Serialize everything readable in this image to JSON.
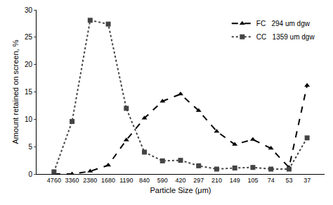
{
  "chart_data": {
    "type": "line",
    "x_label": "Particle Size (μm)",
    "y_label": "Amount retained on screen, %",
    "categories": [
      "4760",
      "3360",
      "2380",
      "1680",
      "1190",
      "840",
      "590",
      "420",
      "297",
      "210",
      "149",
      "105",
      "74",
      "53",
      "37"
    ],
    "series": [
      {
        "name": "FC   294 um dgw",
        "color": "#000000",
        "marker": "triangle-up",
        "line_style": "dash",
        "values": [
          0,
          0,
          0.5,
          1.6,
          6.2,
          10.2,
          13.3,
          14.6,
          11.6,
          7.8,
          5.4,
          6.3,
          4.7,
          1.2,
          16.2
        ]
      },
      {
        "name": "CC   1359 um dgw",
        "color": "#444444",
        "marker": "square",
        "line_style": "dot",
        "values": [
          0.4,
          9.6,
          28.1,
          27.4,
          12,
          4,
          2.4,
          2.5,
          1.5,
          0.9,
          1.1,
          1.2,
          0.9,
          0.9,
          6.6
        ]
      }
    ],
    "ylim": [
      0,
      30
    ],
    "yticks": [
      0,
      5,
      10,
      15,
      20,
      25,
      30
    ],
    "grid": false,
    "legend": "top right"
  }
}
